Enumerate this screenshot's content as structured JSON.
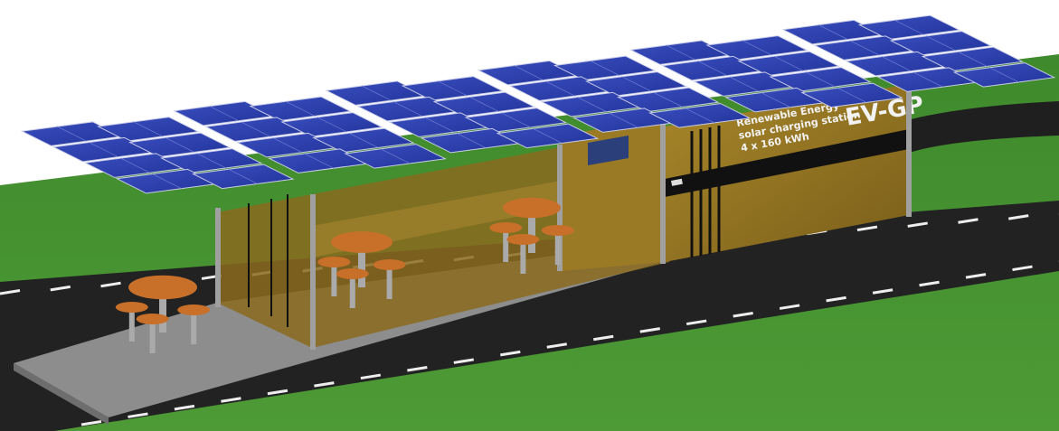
{
  "sign": {
    "line1": "Renewable Energy",
    "line2": "solar charging station",
    "line3": "4 x 160 kWh",
    "brand": "EV-GP"
  }
}
